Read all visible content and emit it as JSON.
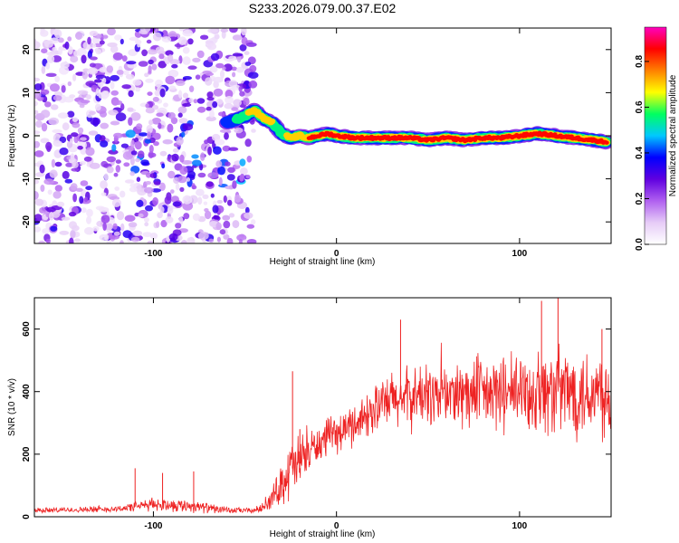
{
  "title": "S233.2026.079.00.37.E02",
  "chart_data": [
    {
      "type": "heatmap",
      "xlabel": "Height of straight line (km)",
      "ylabel": "Frequency (Hz)",
      "xlim": [
        -165,
        150
      ],
      "ylim": [
        -25,
        25
      ],
      "x_ticks": [
        -100,
        0,
        100
      ],
      "y_ticks": [
        -20,
        -10,
        0,
        10,
        20
      ],
      "colorbar": {
        "label": "Normalized spectral amplitude",
        "range": [
          0.0,
          0.95
        ],
        "ticks": [
          0.0,
          0.2,
          0.4,
          0.6,
          0.8
        ],
        "colors": [
          "#ffffff",
          "#e6ccf7",
          "#b060f0",
          "#6000e0",
          "#0000ff",
          "#00c8ff",
          "#00ff60",
          "#ffff00",
          "#ff8000",
          "#ff0000",
          "#ff00c0"
        ]
      },
      "ridge": {
        "x": [
          -60,
          -50,
          -45,
          -40,
          -35,
          -30,
          -25,
          -20,
          -15,
          -10,
          -5,
          0,
          10,
          20,
          30,
          40,
          50,
          60,
          70,
          80,
          90,
          100,
          110,
          120,
          130,
          140,
          148
        ],
        "frequency": [
          3,
          4.5,
          6,
          4,
          3,
          0.5,
          -0.5,
          0,
          -0.5,
          0,
          0.5,
          0,
          -0.5,
          -0.5,
          -0.5,
          -0.5,
          -1,
          -0.5,
          -1,
          -0.5,
          -0.5,
          0,
          0.5,
          0,
          -0.5,
          -1,
          -1.5
        ],
        "amplitude": [
          0.4,
          0.6,
          0.75,
          0.7,
          0.65,
          0.6,
          0.7,
          0.75,
          0.8,
          0.85,
          0.85,
          0.85,
          0.9,
          0.9,
          0.85,
          0.85,
          0.9,
          0.85,
          0.9,
          0.85,
          0.9,
          0.85,
          0.85,
          0.9,
          0.85,
          0.85,
          0.8
        ]
      },
      "scatter_region": {
        "x_range": [
          -165,
          -45
        ],
        "frequency_range": [
          -25,
          25
        ],
        "amplitude_range": [
          0.05,
          0.35
        ]
      }
    },
    {
      "type": "line",
      "xlabel": "Height of straight line (km)",
      "ylabel": "SNR (10 * v/v)",
      "xlim": [
        -165,
        150
      ],
      "ylim": [
        0,
        700
      ],
      "x_ticks": [
        -100,
        0,
        100
      ],
      "y_ticks": [
        0,
        200,
        400,
        600
      ],
      "color": "#ee2222",
      "envelope": {
        "x": [
          -165,
          -120,
          -100,
          -80,
          -60,
          -45,
          -40,
          -35,
          -30,
          -25,
          -20,
          -15,
          -10,
          -5,
          0,
          10,
          20,
          30,
          40,
          50,
          60,
          80,
          100,
          120,
          140,
          150
        ],
        "mean": [
          20,
          25,
          40,
          35,
          20,
          20,
          30,
          60,
          110,
          150,
          170,
          210,
          230,
          250,
          260,
          300,
          340,
          370,
          380,
          390,
          390,
          390,
          395,
          400,
          400,
          395
        ],
        "spread": [
          10,
          12,
          25,
          25,
          12,
          10,
          20,
          40,
          80,
          120,
          110,
          80,
          70,
          70,
          70,
          80,
          90,
          110,
          120,
          120,
          130,
          140,
          150,
          170,
          180,
          180
        ]
      },
      "peaks": {
        "x": [
          -110,
          -95,
          -78,
          -24,
          -20,
          35,
          112,
          121,
          145
        ],
        "y": [
          155,
          140,
          145,
          465,
          280,
          630,
          690,
          700,
          600
        ]
      }
    }
  ]
}
